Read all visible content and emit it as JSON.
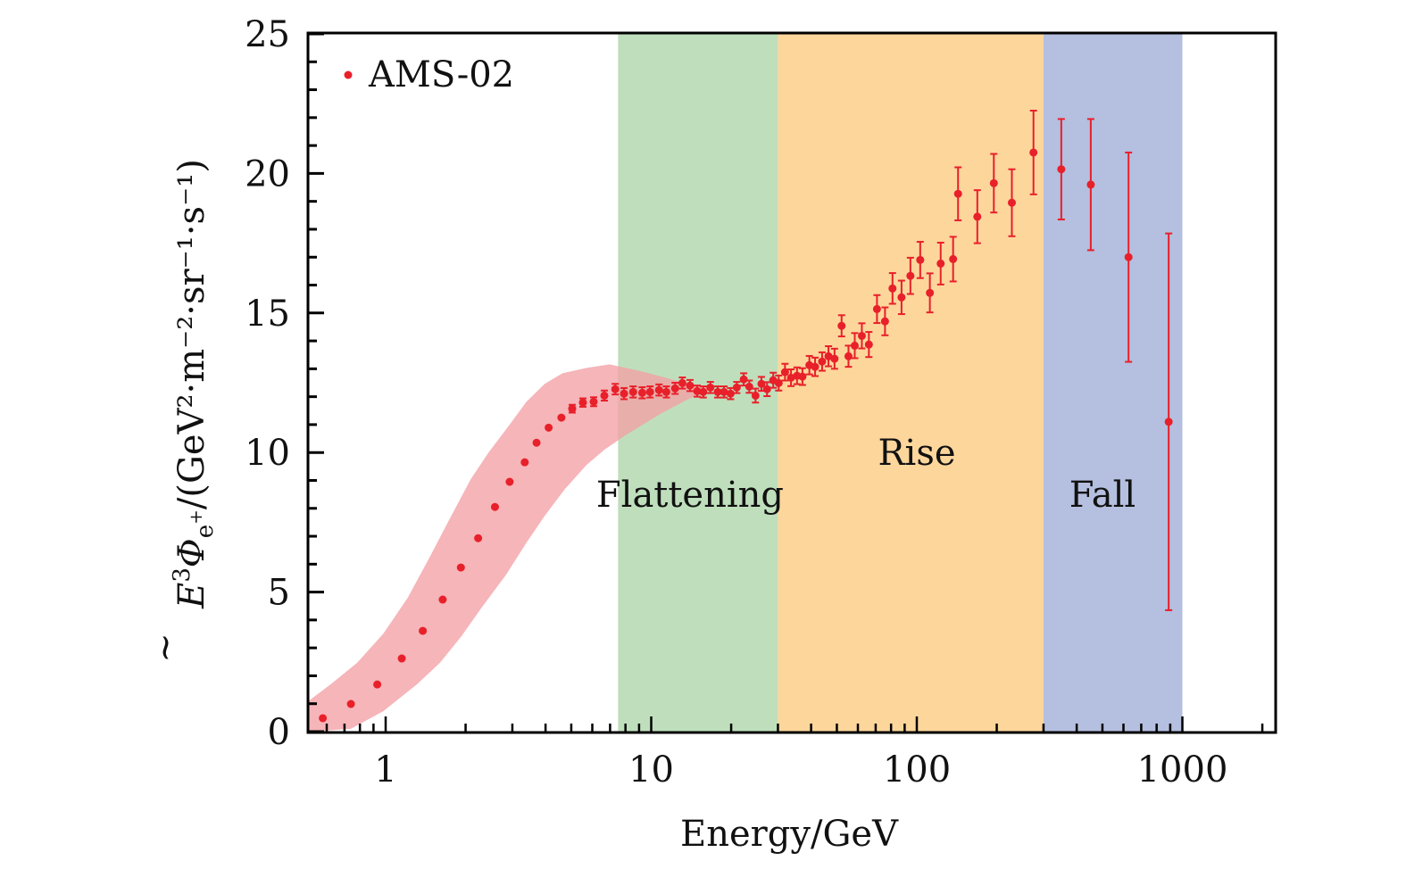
{
  "chart_data": {
    "type": "scatter",
    "title": "",
    "xlabel": "Energy/GeV",
    "ylabel": {
      "main": "E",
      "sup": "3",
      "phi": "Φ",
      "phi_sub": "e",
      "phi_sub_sup": "+",
      "units": "/(GeV²·m⁻²·sr⁻¹·s⁻¹)",
      "full": "Ẽ³Φ_e+ /(GeV²·m⁻²·sr⁻¹·s⁻¹)"
    },
    "xscale": "log",
    "xlim": [
      0.5,
      2000
    ],
    "ylim": [
      0,
      25
    ],
    "xticks": [
      1,
      10,
      100,
      1000
    ],
    "xtick_labels": [
      "1",
      "10",
      "100",
      "1000"
    ],
    "yticks": [
      0,
      5,
      10,
      15,
      20,
      25
    ],
    "ytick_labels": [
      "0",
      "5",
      "10",
      "15",
      "20",
      "25"
    ],
    "grid": false,
    "legend": {
      "position": "top-left",
      "entries": [
        {
          "label": "AMS-02",
          "marker": "dot",
          "color": "#e8202a"
        }
      ]
    },
    "regions": [
      {
        "name": "Flattening",
        "x_from": 7.5,
        "x_to": 30,
        "color": "#bfdfbc",
        "label_x": 14,
        "label_y": 8.5
      },
      {
        "name": "Rise",
        "x_from": 30,
        "x_to": 300,
        "color": "#fdd69c",
        "label_x": 100,
        "label_y": 10
      },
      {
        "name": "Fall",
        "x_from": 300,
        "x_to": 1000,
        "color": "#b5bfdf",
        "label_x": 500,
        "label_y": 8.5
      }
    ],
    "band": {
      "name": "uncertainty band",
      "color": "#f4a0a5",
      "upper": [
        [
          0.49,
          0.96
        ],
        [
          0.62,
          1.69
        ],
        [
          0.78,
          2.46
        ],
        [
          0.98,
          3.51
        ],
        [
          1.21,
          4.79
        ],
        [
          1.45,
          6.17
        ],
        [
          1.73,
          7.57
        ],
        [
          2.09,
          9.04
        ],
        [
          2.44,
          10.0
        ],
        [
          2.91,
          10.96
        ],
        [
          3.39,
          11.82
        ],
        [
          3.97,
          12.46
        ],
        [
          4.63,
          12.84
        ],
        [
          5.7,
          13.03
        ],
        [
          6.97,
          13.16
        ],
        [
          9.3,
          12.9
        ],
        [
          12.7,
          12.55
        ],
        [
          17.2,
          12.3
        ]
      ],
      "lower": [
        [
          0.5,
          0.0
        ],
        [
          0.53,
          0.0
        ],
        [
          0.74,
          0.1
        ],
        [
          0.98,
          0.73
        ],
        [
          1.31,
          1.69
        ],
        [
          1.6,
          2.46
        ],
        [
          1.93,
          3.42
        ],
        [
          2.31,
          4.47
        ],
        [
          2.84,
          5.62
        ],
        [
          3.39,
          6.77
        ],
        [
          3.97,
          7.73
        ],
        [
          4.73,
          8.69
        ],
        [
          5.7,
          9.55
        ],
        [
          6.66,
          10.1
        ],
        [
          7.95,
          10.6
        ],
        [
          10.9,
          11.4
        ],
        [
          13.7,
          11.9
        ],
        [
          17.2,
          12.3
        ]
      ]
    },
    "series": [
      {
        "name": "AMS-02",
        "color": "#e8202a",
        "x": [
          0.58,
          0.74,
          0.93,
          1.15,
          1.38,
          1.64,
          1.92,
          2.23,
          2.58,
          2.93,
          3.34,
          3.7,
          4.11,
          4.59,
          5.04,
          5.53,
          6.07,
          6.66,
          7.32,
          7.9,
          8.55,
          9.25,
          9.9,
          10.7,
          11.4,
          12.3,
          13.1,
          14.0,
          14.9,
          15.7,
          16.7,
          17.8,
          18.8,
          19.9,
          21.0,
          22.3,
          23.4,
          24.7,
          26.0,
          27.3,
          28.8,
          30.2,
          31.9,
          33.6,
          35.4,
          37.1,
          39.4,
          41.4,
          44.0,
          46.5,
          49.0,
          52.1,
          55.3,
          58.4,
          62.1,
          66.0,
          70.8,
          75.9,
          81.0,
          87.6,
          94.6,
          103,
          112,
          123,
          137,
          143,
          169,
          195,
          228,
          275,
          350,
          452,
          627,
          888
        ],
        "y": [
          0.48,
          0.99,
          1.69,
          2.62,
          3.61,
          4.73,
          5.88,
          6.93,
          8.05,
          8.95,
          9.65,
          10.35,
          10.89,
          11.25,
          11.57,
          11.79,
          11.82,
          12.04,
          12.27,
          12.11,
          12.17,
          12.14,
          12.17,
          12.24,
          12.17,
          12.3,
          12.49,
          12.4,
          12.2,
          12.17,
          12.33,
          12.17,
          12.17,
          12.11,
          12.33,
          12.62,
          12.36,
          12.04,
          12.46,
          12.27,
          12.59,
          12.49,
          12.88,
          12.68,
          12.75,
          12.72,
          13.13,
          13.07,
          13.26,
          13.45,
          13.36,
          14.54,
          13.45,
          13.83,
          14.18,
          13.87,
          15.14,
          14.7,
          15.88,
          15.56,
          16.33,
          16.9,
          15.72,
          16.77,
          16.93,
          19.27,
          18.45,
          19.65,
          18.95,
          20.75,
          20.15,
          19.6,
          17.0,
          11.1
        ],
        "err": [
          0.03,
          0.03,
          0.03,
          0.04,
          0.04,
          0.05,
          0.05,
          0.06,
          0.07,
          0.08,
          0.09,
          0.1,
          0.11,
          0.12,
          0.14,
          0.15,
          0.16,
          0.18,
          0.19,
          0.2,
          0.2,
          0.2,
          0.2,
          0.2,
          0.2,
          0.2,
          0.2,
          0.2,
          0.2,
          0.2,
          0.2,
          0.2,
          0.2,
          0.2,
          0.2,
          0.22,
          0.22,
          0.25,
          0.25,
          0.25,
          0.27,
          0.27,
          0.3,
          0.3,
          0.3,
          0.3,
          0.33,
          0.33,
          0.33,
          0.36,
          0.36,
          0.38,
          0.38,
          0.45,
          0.45,
          0.45,
          0.5,
          0.5,
          0.55,
          0.6,
          0.65,
          0.65,
          0.7,
          0.75,
          0.8,
          0.95,
          0.95,
          1.05,
          1.2,
          1.5,
          1.8,
          2.35,
          3.75,
          6.75
        ]
      }
    ]
  }
}
